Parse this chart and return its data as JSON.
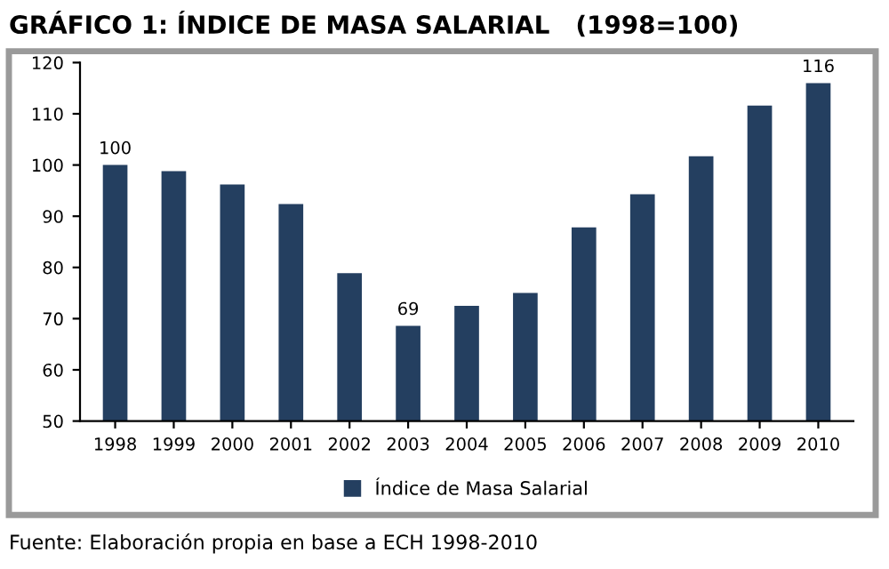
{
  "chart_data": {
    "type": "bar",
    "title": "GRÁFICO 1: ÍNDICE DE MASA SALARIAL   (1998=100)",
    "categories": [
      "1998",
      "1999",
      "2000",
      "2001",
      "2002",
      "2003",
      "2004",
      "2005",
      "2006",
      "2007",
      "2008",
      "2009",
      "2010"
    ],
    "series": [
      {
        "name": "Índice de Masa Salarial",
        "color": "#243f60",
        "values": [
          100,
          98.8,
          96.2,
          92.4,
          78.9,
          68.6,
          72.5,
          75,
          87.8,
          94.3,
          101.7,
          111.6,
          116
        ],
        "value_labels": [
          "100",
          null,
          null,
          null,
          null,
          "69",
          null,
          null,
          null,
          null,
          null,
          null,
          "116"
        ]
      }
    ],
    "ylim": [
      50,
      120
    ],
    "yticks": [
      50,
      60,
      70,
      80,
      90,
      100,
      110,
      120
    ],
    "grid": false,
    "legend": "bottom",
    "annotations": [
      "Fuente: Elaboración propia en base a ECH 1998-2010"
    ]
  }
}
